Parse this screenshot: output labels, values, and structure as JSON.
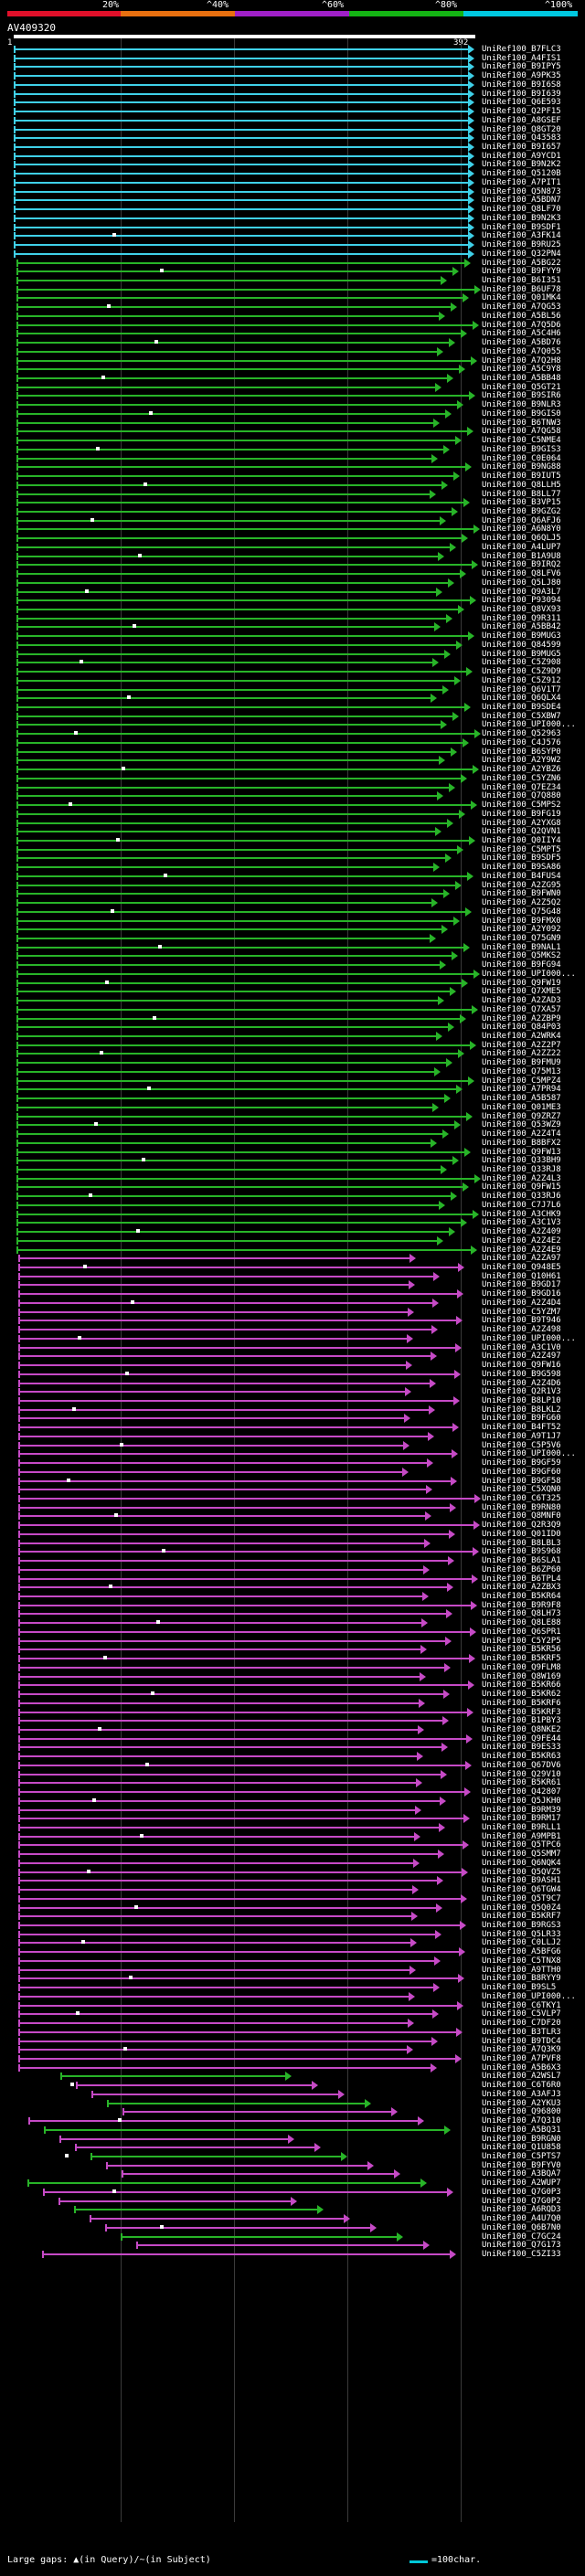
{
  "legend": {
    "colors": [
      "#e0102a",
      "#e87010",
      "#a020c8",
      "#14b414",
      "#00c8e0"
    ],
    "labels": [
      "20%",
      "^40%",
      "^60%",
      "^80%",
      "^100%"
    ]
  },
  "query": {
    "id": "AV409320",
    "start": "1",
    "end": "392"
  },
  "hits": {
    "colors": {
      "cyan": "#3fd0e8",
      "green": "#28b428",
      "magenta": "#c64ac6"
    },
    "labels": [
      "UniRef100_B7FLC3",
      "UniRef100_A4FIS1",
      "UniRef100_B9IPY5",
      "UniRef100_A9PK35",
      "UniRef100_B9I6S8",
      "UniRef100_B9I639",
      "UniRef100_Q6E593",
      "UniRef100_Q2PF15",
      "UniRef100_A8GSEF",
      "UniRef100_Q8GT20",
      "UniRef100_Q43583",
      "UniRef100_B9I657",
      "UniRef100_A9YCD1",
      "UniRef100_B9N2K2",
      "UniRef100_Q5120B",
      "UniRef100_A7PIT1",
      "UniRef100_Q5N873",
      "UniRef100_A5BDN7",
      "UniRef100_Q8LF70",
      "UniRef100_B9N2K3",
      "UniRef100_B9SDF1",
      "UniRef100_A3FK14",
      "UniRef100_B9RU25",
      "UniRef100_Q32PN4",
      "UniRef100_A5BG22",
      "UniRef100_B9FYY9",
      "UniRef100_B6I351",
      "UniRef100_B6UF78",
      "UniRef100_Q01MK4",
      "UniRef100_A7QG53",
      "UniRef100_A5BL56",
      "UniRef100_A7Q5D6",
      "UniRef100_A5C4H6",
      "UniRef100_A5BD76",
      "UniRef100_A7Q055",
      "UniRef100_A7Q2H8",
      "UniRef100_A5C9Y8",
      "UniRef100_A5BB48",
      "UniRef100_Q5GT21",
      "UniRef100_B9SIR6",
      "UniRef100_B9NLR3",
      "UniRef100_B9GIS0",
      "UniRef100_B6TNW3",
      "UniRef100_A7QG58",
      "UniRef100_C5NME4",
      "UniRef100_B9GIS3",
      "UniRef100_C0E064",
      "UniRef100_B9NG88",
      "UniRef100_B9IUT5",
      "UniRef100_Q8LLH5",
      "UniRef100_B8LL77",
      "UniRef100_B3VP15",
      "UniRef100_B9GZG2",
      "UniRef100_Q6AFJ6",
      "UniRef100_A6N8Y0",
      "UniRef100_Q6QLJ5",
      "UniRef100_A4LUP7",
      "UniRef100_B1A9U8",
      "UniRef100_B9IRQ2",
      "UniRef100_Q8LFV6",
      "UniRef100_Q5LJ80",
      "UniRef100_Q9A3L7",
      "UniRef100_P93094",
      "UniRef100_Q8VX93",
      "UniRef100_Q9R311",
      "UniRef100_A5BB42",
      "UniRef100_B9MUG3",
      "UniRef100_Q84599",
      "UniRef100_B9MUG5",
      "UniRef100_C5Z908",
      "UniRef100_C5Z9D9",
      "UniRef100_C5Z912",
      "UniRef100_Q6V1T7",
      "UniRef100_Q6QLX4",
      "UniRef100_B9SDE4",
      "UniRef100_C5XBW7",
      "UniRef100_UPI000...",
      "UniRef100_Q52963",
      "UniRef100_C4J576",
      "UniRef100_B6SYP0",
      "UniRef100_A2Y9W2",
      "UniRef100_A2YBZ6",
      "UniRef100_C5YZN6",
      "UniRef100_Q7EZ34",
      "UniRef100_Q7Q880",
      "UniRef100_C5MPS2",
      "UniRef100_B9FG19",
      "UniRef100_A2YXG8",
      "UniRef100_Q2QVN1",
      "UniRef100_Q0IIY4",
      "UniRef100_C5MPT5",
      "UniRef100_B9SDF5",
      "UniRef100_B9SA86",
      "UniRef100_B4FUS4",
      "UniRef100_A2ZG95",
      "UniRef100_B9FWN0",
      "UniRef100_A2Z5Q2",
      "UniRef100_Q75G48",
      "UniRef100_B9FMX0",
      "UniRef100_A2Y092",
      "UniRef100_Q75GN9",
      "UniRef100_B9NAL1",
      "UniRef100_Q5MKS2",
      "UniRef100_B9FG94",
      "UniRef100_UPI000...",
      "UniRef100_Q9FW19",
      "UniRef100_Q7XME5",
      "UniRef100_A2ZAD3",
      "UniRef100_Q7XA57",
      "UniRef100_A2ZBP9",
      "UniRef100_Q84P03",
      "UniRef100_A2WRK4",
      "UniRef100_A2Z2P7",
      "UniRef100_A2ZZ22",
      "UniRef100_B9FMU9",
      "UniRef100_Q75M13",
      "UniRef100_C5MPZ4",
      "UniRef100_A7PR94",
      "UniRef100_A5B587",
      "UniRef100_Q01ME3",
      "UniRef100_Q9ZRZ7",
      "UniRef100_Q53WZ9",
      "UniRef100_A2Z4T4",
      "UniRef100_B8BFX2",
      "UniRef100_Q9FW13",
      "UniRef100_Q33BH9",
      "UniRef100_Q33RJ8",
      "UniRef100_A2Z4L3",
      "UniRef100_Q9FW15",
      "UniRef100_Q33RJ6",
      "UniRef100_C7J7L6",
      "UniRef100_A3CHK9",
      "UniRef100_A3C1V3",
      "UniRef100_A2Z409",
      "UniRef100_A2Z4E2",
      "UniRef100_A2Z4E9",
      "UniRef100_A2ZA97",
      "UniRef100_Q948E5",
      "UniRef100_Q10H61",
      "UniRef100_B9GD17",
      "UniRef100_B9GD16",
      "UniRef100_A2Z4D4",
      "UniRef100_C5YZM7",
      "UniRef100_B9T946",
      "UniRef100_A2Z498",
      "UniRef100_UPI000...",
      "UniRef100_A3C1V0",
      "UniRef100_A2Z497",
      "UniRef100_Q9FW16",
      "UniRef100_B9G598",
      "UniRef100_A2Z4D6",
      "UniRef100_Q2R1V3",
      "UniRef100_B8LP10",
      "UniRef100_B8LKL2",
      "UniRef100_B9FG60",
      "UniRef100_B4FT52",
      "UniRef100_A9T1J7",
      "UniRef100_C5P5V6",
      "UniRef100_UPI000...",
      "UniRef100_B9GF59",
      "UniRef100_B9GF60",
      "UniRef100_B9GF58",
      "UniRef100_C5XQN0",
      "UniRef100_C6T325",
      "UniRef100_B9RN80",
      "UniRef100_Q8MNF0",
      "UniRef100_Q2R3Q9",
      "UniRef100_Q01ID0",
      "UniRef100_B8LBL3",
      "UniRef100_B9S968",
      "UniRef100_B6SLA1",
      "UniRef100_B6ZP60",
      "UniRef100_B6TPL4",
      "UniRef100_A2ZBX3",
      "UniRef100_B5KR64",
      "UniRef100_B9R9F8",
      "UniRef100_Q8LH73",
      "UniRef100_Q8LE88",
      "UniRef100_Q6SPR1",
      "UniRef100_C5Y2P5",
      "UniRef100_B5KR56",
      "UniRef100_B5KRF5",
      "UniRef100_Q9FLM8",
      "UniRef100_Q8W169",
      "UniRef100_B5KR66",
      "UniRef100_B5KR62",
      "UniRef100_B5KRF6",
      "UniRef100_B5KRF3",
      "UniRef100_B1PBY3",
      "UniRef100_Q8NKE2",
      "UniRef100_Q9FE44",
      "UniRef100_B9ES33",
      "UniRef100_B5KR63",
      "UniRef100_Q67DV6",
      "UniRef100_Q29V10",
      "UniRef100_B5KR61",
      "UniRef100_Q42807",
      "UniRef100_Q5JKH0",
      "UniRef100_B9RM39",
      "UniRef100_B9RM17",
      "UniRef100_B9RLL1",
      "UniRef100_A9MPB1",
      "UniRef100_Q5TPC6",
      "UniRef100_Q5SMM7",
      "UniRef100_Q6NQK4",
      "UniRef100_Q5QVZ5",
      "UniRef100_B9ASH1",
      "UniRef100_Q6TGW4",
      "UniRef100_Q5T9C7",
      "UniRef100_Q5Q0Z4",
      "UniRef100_B5KRF7",
      "UniRef100_B9RGS3",
      "UniRef100_Q5LR33",
      "UniRef100_C0LLJ2",
      "UniRef100_A5BFG6",
      "UniRef100_C5TNX8",
      "UniRef100_A9TTH0",
      "UniRef100_B8RYY9",
      "UniRef100_B9SL5",
      "UniRef100_UPI000...",
      "UniRef100_C6TKY1",
      "UniRef100_C5VLP7",
      "UniRef100_C7DF20",
      "UniRef100_B3TLR3",
      "UniRef100_B9TDC4",
      "UniRef100_A7Q3K9",
      "UniRef100_A7PVF8",
      "UniRef100_A5B6X3",
      "UniRef100_A2WSL7",
      "UniRef100_C6T6R0",
      "UniRef100_A3AFJ3",
      "UniRef100_A2YKU3",
      "UniRef100_Q96800",
      "UniRef100_A7Q310",
      "UniRef100_A5BQ31",
      "UniRef100_B9RGN0",
      "UniRef100_Q1U858",
      "UniRef100_C5PTS7",
      "UniRef100_B9FYV0",
      "UniRef100_A3BQA7",
      "UniRef100_A2WUP7",
      "UniRef100_Q7G0P3",
      "UniRef100_Q7G0P2",
      "UniRef100_A6RQD3",
      "UniRef100_A4U7Q0",
      "UniRef100_Q6B7N0",
      "UniRef100_C7GC24",
      "UniRef100_Q7G173",
      "UniRef100_C5ZI33"
    ]
  },
  "footer": {
    "gaps_label": "Large gaps: ▲(in Query)/~(in Subject)",
    "scale_label": "=100char."
  }
}
